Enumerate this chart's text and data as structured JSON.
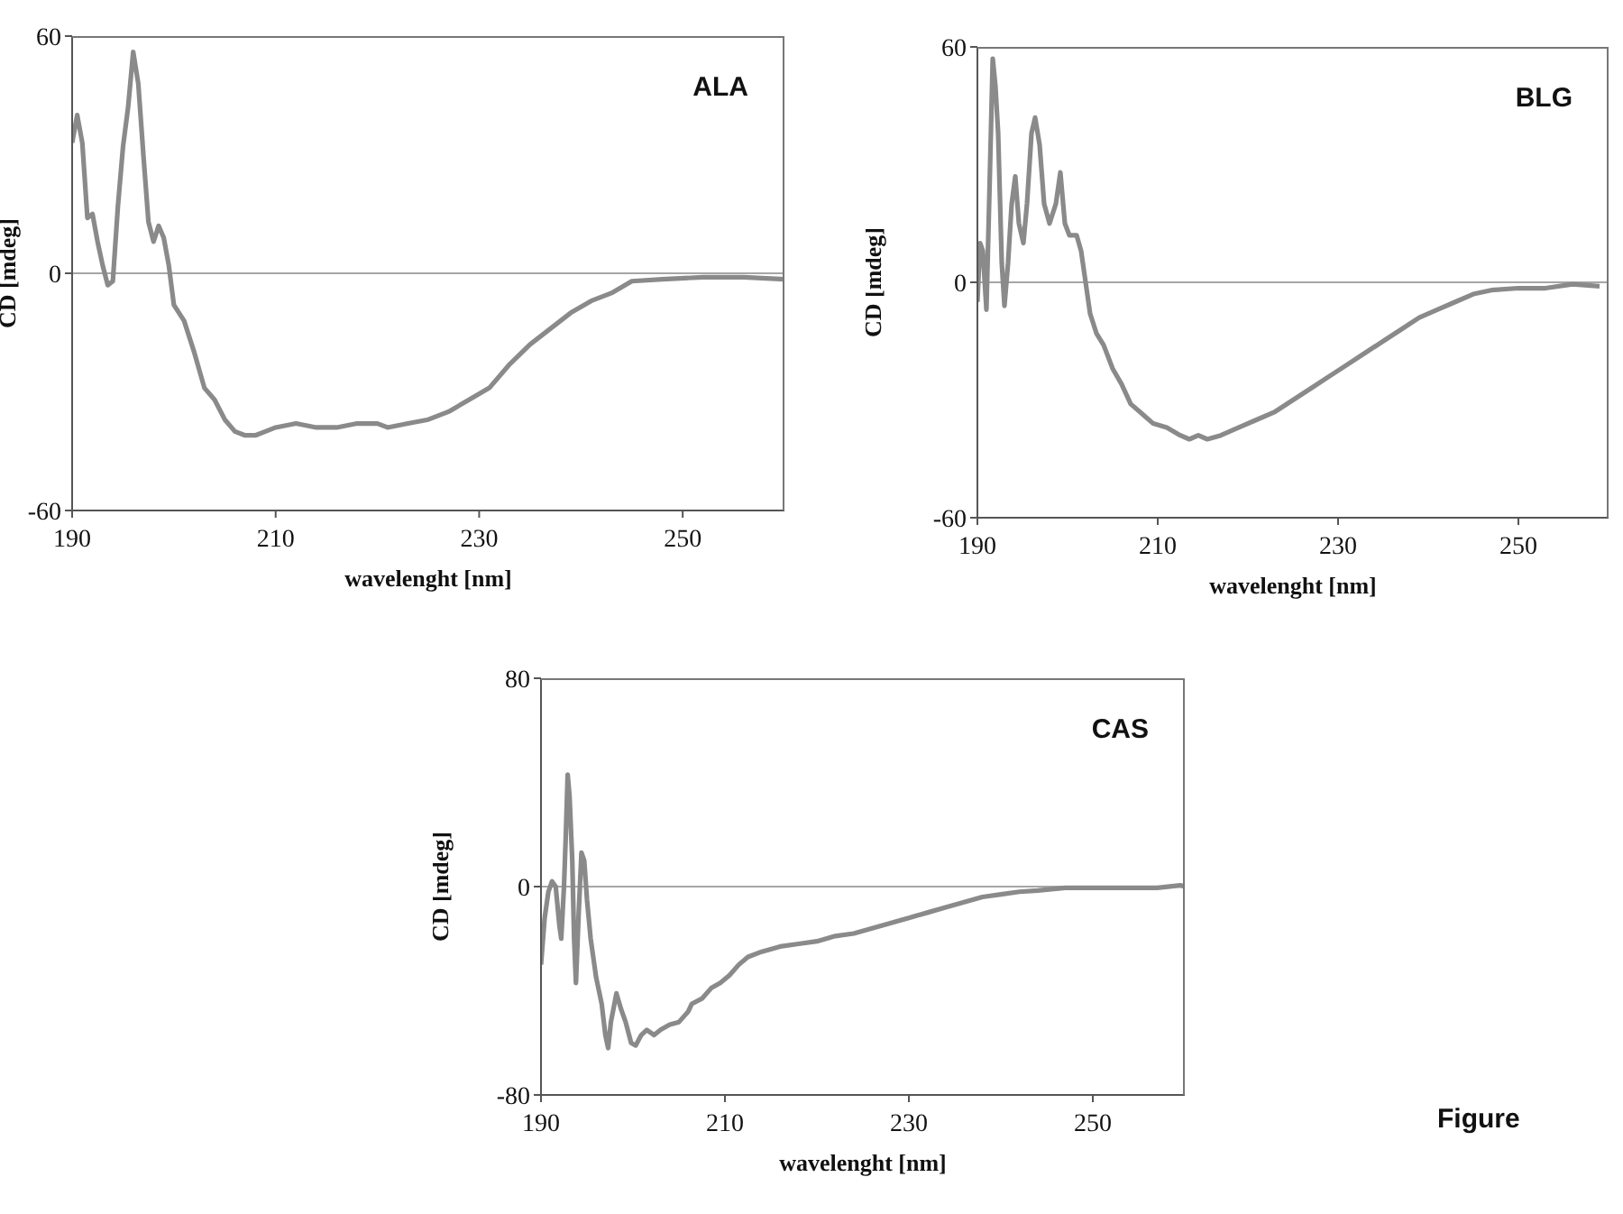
{
  "chart_data": [
    {
      "type": "line",
      "xlabel": "wavelenght [nm]",
      "ylabel": "CD [mdeg]",
      "annotations": [
        "ALA"
      ],
      "xlim": [
        190,
        260
      ],
      "xticks": [
        190,
        210,
        230,
        250
      ],
      "ylim": [
        -60,
        60
      ],
      "yticks": [
        -60,
        0,
        60
      ],
      "grid": false,
      "legend": false,
      "marker": "none",
      "line_style": "solid",
      "ref_lines": [
        {
          "axis": "y",
          "value": 0,
          "label": null,
          "color": "#888888"
        }
      ],
      "series": [
        {
          "color": "#8a8a8a",
          "x": [
            190,
            190.5,
            191,
            191.5,
            192,
            192.5,
            193,
            193.5,
            194,
            194.5,
            195,
            195.5,
            196,
            196.5,
            197,
            197.5,
            198,
            198.5,
            199,
            199.5,
            200,
            201,
            202,
            203,
            204,
            205,
            206,
            207,
            208,
            209,
            210,
            212,
            214,
            216,
            218,
            220,
            221,
            223,
            225,
            227,
            229,
            231,
            233,
            235,
            237,
            239,
            241,
            243,
            245,
            248,
            252,
            256,
            260
          ],
          "values": [
            33,
            40,
            33,
            14,
            15,
            8,
            2,
            -3,
            -2,
            17,
            32,
            42,
            56,
            48,
            30,
            13,
            8,
            12,
            9,
            2,
            -8,
            -12,
            -20,
            -29,
            -32,
            -37,
            -40,
            -41,
            -41,
            -40,
            -39,
            -38,
            -39,
            -39,
            -38,
            -38,
            -39,
            -38,
            -37,
            -35,
            -32,
            -29,
            -23,
            -18,
            -14,
            -10,
            -7,
            -5,
            -2,
            -1.5,
            -1,
            -1,
            -1.5
          ]
        }
      ]
    },
    {
      "type": "line",
      "xlabel": "wavelenght [nm]",
      "ylabel": "CD [mdeg]",
      "annotations": [
        "BLG"
      ],
      "xlim": [
        190,
        260
      ],
      "xticks": [
        190,
        210,
        230,
        250
      ],
      "ylim": [
        -60,
        60
      ],
      "yticks": [
        -60,
        0,
        60
      ],
      "grid": false,
      "legend": false,
      "marker": "none",
      "line_style": "solid",
      "ref_lines": [
        {
          "axis": "y",
          "value": 0,
          "label": null,
          "color": "#888888"
        }
      ],
      "series": [
        {
          "color": "#8a8a8a",
          "x": [
            190,
            190.3,
            190.6,
            191,
            191.3,
            191.7,
            192,
            192.3,
            192.7,
            193,
            193.4,
            193.8,
            194.2,
            194.6,
            195.1,
            195.5,
            196,
            196.4,
            196.9,
            197.4,
            198,
            198.7,
            199.2,
            199.7,
            200.2,
            201,
            201.5,
            202,
            202.5,
            203.2,
            204,
            205,
            206,
            207,
            208,
            209.5,
            211,
            212.5,
            213.5,
            214.5,
            215.5,
            217,
            219,
            221,
            223,
            225,
            227,
            229,
            231,
            233,
            235,
            237,
            239,
            241,
            243,
            245,
            247,
            250,
            253,
            256,
            259
          ],
          "values": [
            -5,
            10,
            8,
            -7,
            20,
            57,
            50,
            38,
            5,
            -6,
            5,
            20,
            27,
            15,
            10,
            20,
            38,
            42,
            35,
            20,
            15,
            20,
            28,
            15,
            12,
            12,
            8,
            0,
            -8,
            -13,
            -16,
            -22,
            -26,
            -31,
            -33,
            -36,
            -37,
            -39,
            -40,
            -39,
            -40,
            -39,
            -37,
            -35,
            -33,
            -30,
            -27,
            -24,
            -21,
            -18,
            -15,
            -12,
            -9,
            -7,
            -5,
            -3,
            -2,
            -1.5,
            -1.5,
            -0.5,
            -1
          ]
        }
      ]
    },
    {
      "type": "line",
      "xlabel": "wavelenght [nm]",
      "ylabel": "CD [mdeg]",
      "annotations": [
        "CAS",
        "Figure"
      ],
      "xlim": [
        190,
        260
      ],
      "xticks": [
        190,
        210,
        230,
        250
      ],
      "ylim": [
        -80,
        80
      ],
      "yticks": [
        -80,
        0,
        80
      ],
      "grid": false,
      "legend": false,
      "marker": "none",
      "line_style": "solid",
      "ref_lines": [
        {
          "axis": "y",
          "value": 0,
          "label": null,
          "color": "#888888"
        }
      ],
      "series": [
        {
          "color": "#8a8a8a",
          "x": [
            190,
            190.4,
            190.8,
            191.2,
            191.6,
            192,
            192.2,
            192.5,
            192.7,
            192.9,
            193.1,
            193.4,
            193.6,
            193.8,
            194.1,
            194.4,
            194.7,
            195,
            195.4,
            196,
            196.6,
            197,
            197.3,
            197.6,
            198.2,
            198.7,
            199.2,
            199.8,
            200.3,
            200.9,
            201.5,
            202.3,
            203,
            204,
            205,
            206,
            206.4,
            207.5,
            208.5,
            209.5,
            210.5,
            211.5,
            212.5,
            214,
            216,
            218,
            220,
            222,
            224,
            226,
            228,
            230,
            232,
            234,
            236,
            238,
            240,
            242,
            244,
            247,
            252,
            257,
            259.5,
            260
          ],
          "values": [
            -30,
            -12,
            -2,
            2,
            0,
            -15,
            -20,
            0,
            20,
            43,
            35,
            10,
            -20,
            -37,
            -10,
            13,
            10,
            -5,
            -20,
            -35,
            -45,
            -57,
            -62,
            -52,
            -41,
            -47,
            -52,
            -60,
            -61,
            -57,
            -55,
            -57,
            -55,
            -53,
            -52,
            -48,
            -45,
            -43,
            -39,
            -37,
            -34,
            -30,
            -27,
            -25,
            -23,
            -22,
            -21,
            -19,
            -18,
            -16,
            -14,
            -12,
            -10,
            -8,
            -6,
            -4,
            -3,
            -2,
            -1.5,
            -0.5,
            -0.5,
            -0.5,
            0.5,
            0
          ]
        }
      ]
    }
  ]
}
